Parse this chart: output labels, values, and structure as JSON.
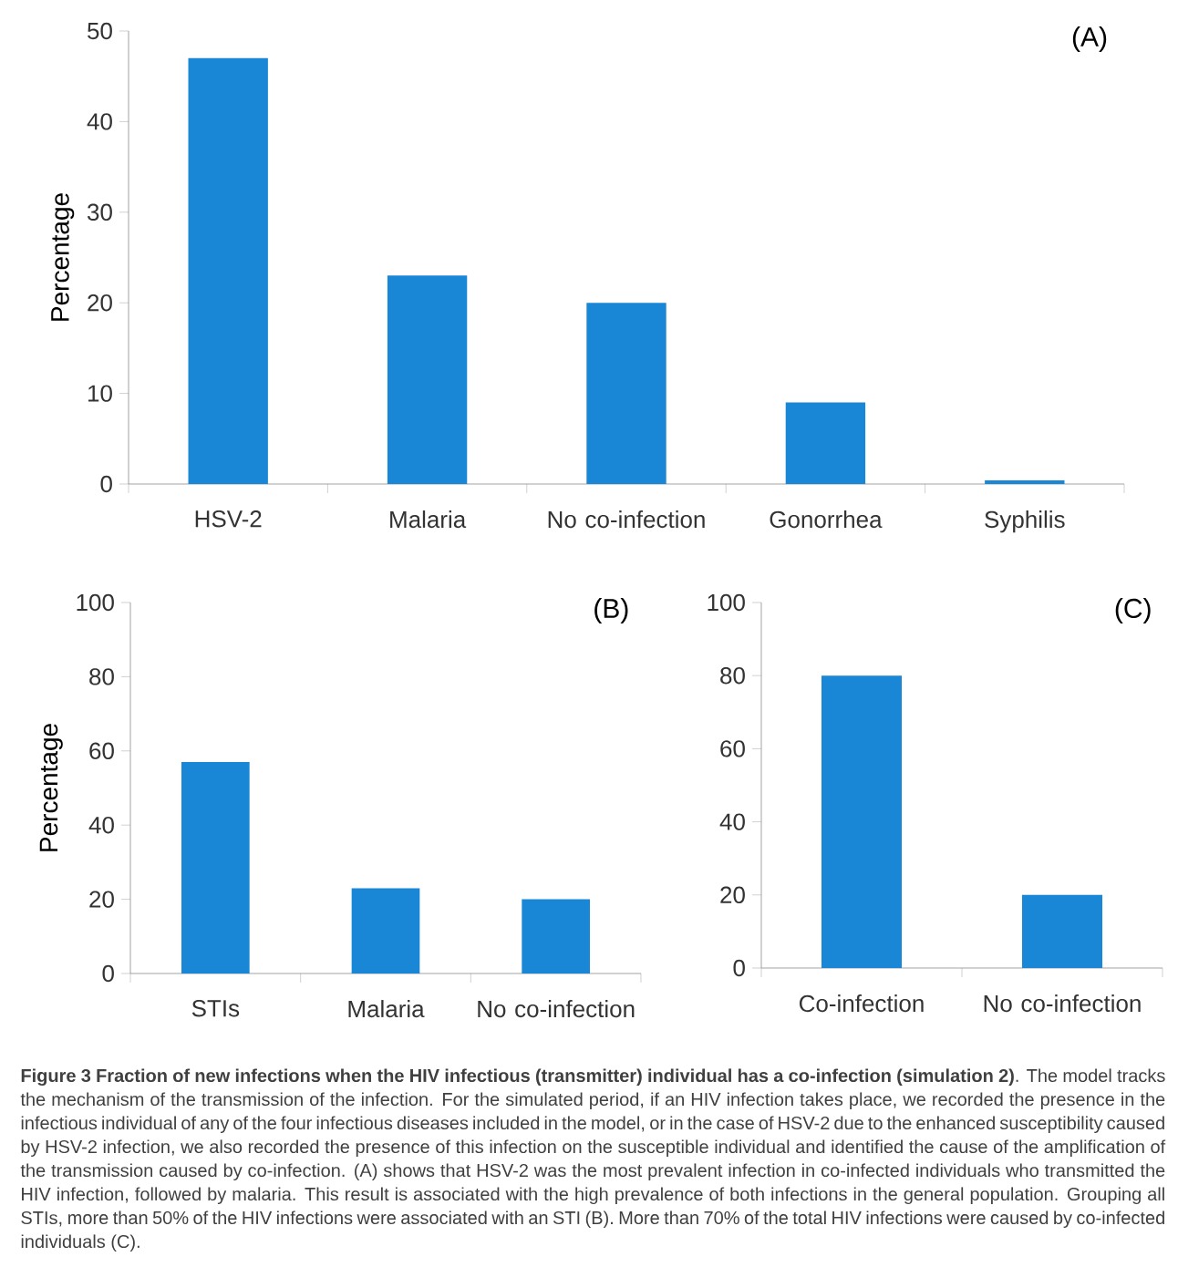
{
  "chart_data": [
    {
      "type": "bar",
      "title": "(A)",
      "ylabel": "Percentage",
      "categories": [
        "HSV-2",
        "Malaria",
        "No co-infection",
        "Gonorrhea",
        "Syphilis"
      ],
      "values": [
        47,
        23,
        20,
        9,
        0.4
      ],
      "color": "#1a86d6",
      "ylim": [
        0,
        50
      ],
      "yticks": [
        0,
        10,
        20,
        30,
        40,
        50
      ]
    },
    {
      "type": "bar",
      "title": "(B)",
      "ylabel": "Percentage",
      "categories": [
        "STIs",
        "Malaria",
        "No co-infection"
      ],
      "values": [
        57,
        23,
        20
      ],
      "color": "#1a86d6",
      "ylim": [
        0,
        100
      ],
      "yticks": [
        0,
        20,
        40,
        60,
        80,
        100
      ]
    },
    {
      "type": "bar",
      "title": "(C)",
      "categories": [
        "Co-infection",
        "No co-infection"
      ],
      "values": [
        80,
        20
      ],
      "color": "#1a86d6",
      "ylim": [
        0,
        100
      ],
      "yticks": [
        0,
        20,
        40,
        60,
        80,
        100
      ],
      "annotations": [
        "**Figure 3 Fraction of new infections when the HIV infectious (transmitter) individual has a co-infection (simulation 2)**. The model tracks the mechanism of the transmission of the infection. For the simulated period, if an HIV infection takes place, we recorded the presence in the infectious individual of any of the four infectious diseases included in the model, or in the case of HSV-2 due to the enhanced susceptibility caused by HSV-2 infection, we also recorded the presence of this infection on the susceptible individual and identified the cause of the amplification of the transmission caused by co-infection. (A) shows that HSV-2 was the most prevalent infection in co-infected individuals who transmitted the HIV infection, followed by malaria. This result is associated with the high prevalence of both infections in the general population. Grouping all STIs, more than 50% of the HIV infections were associated with an STI (B). More than 70% of the total HIV infections were caused by co-infected individuals (C)."
      ]
    }
  ]
}
